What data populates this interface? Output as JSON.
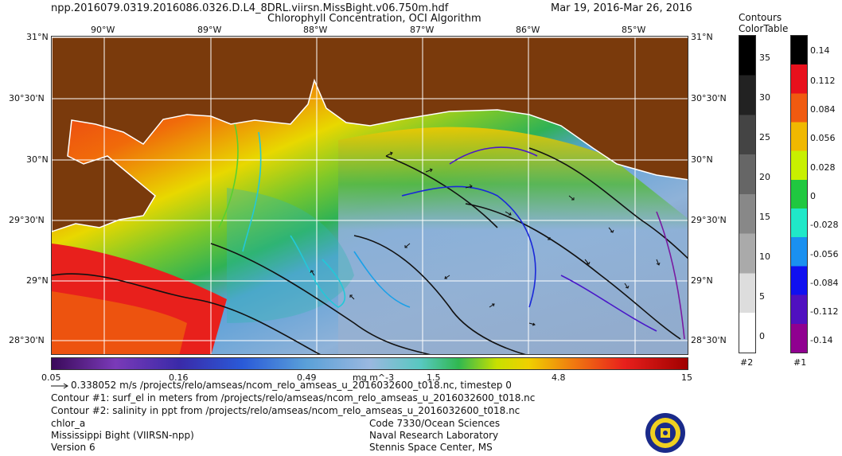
{
  "header": {
    "filename": "npp.2016079.0319.2016086.0326.D.L4_8DRL.viirsn.MissBight.v06.750m.hdf",
    "date_range": "Mar 19, 2016-Mar 26, 2016",
    "title": "Chlorophyll Concentration, OCI Algorithm"
  },
  "map": {
    "lon_labels": [
      "90°W",
      "89°W",
      "88°W",
      "87°W",
      "86°W",
      "85°W"
    ],
    "lat_labels": [
      "31°N",
      "30°30'N",
      "30°N",
      "29°30'N",
      "29°N",
      "28°30'N"
    ],
    "colors": {
      "land": "#7a3a0c",
      "coast": "#ffffff",
      "grid": "#ffffff"
    }
  },
  "colorbar": {
    "ticks": [
      "0.05",
      "0.16",
      "0.49",
      "1.5",
      "4.8",
      "15"
    ],
    "units": "mg m^-3"
  },
  "contour2": {
    "title": "Contours",
    "label": "#2",
    "ticks": [
      "35",
      "30",
      "25",
      "20",
      "15",
      "10",
      "5",
      "0"
    ]
  },
  "contour1": {
    "title": "ColorTable",
    "label": "#1",
    "ticks": [
      "0.14",
      "0.112",
      "0.084",
      "0.056",
      "0.028",
      "0",
      "-0.028",
      "-0.056",
      "-0.084",
      "-0.112",
      "-0.14"
    ]
  },
  "info": {
    "vector_line": "0.338052 m/s /projects/relo/amseas/ncom_relo_amseas_u_2016032600_t018.nc, timestep 0",
    "contour1_line": "Contour #1: surf_el in meters from /projects/relo/amseas/ncom_relo_amseas_u_2016032600_t018.nc",
    "contour2_line": "Contour #2: salinity in ppt from /projects/relo/amseas/ncom_relo_amseas_u_2016032600_t018.nc",
    "product": "chlor_a",
    "region": "Mississippi Bight (VIIRSN-npp)",
    "version": "Version 6",
    "org1": "Code 7330/Ocean Sciences",
    "org2": "Naval Research Laboratory",
    "org3": "Stennis Space Center, MS"
  }
}
